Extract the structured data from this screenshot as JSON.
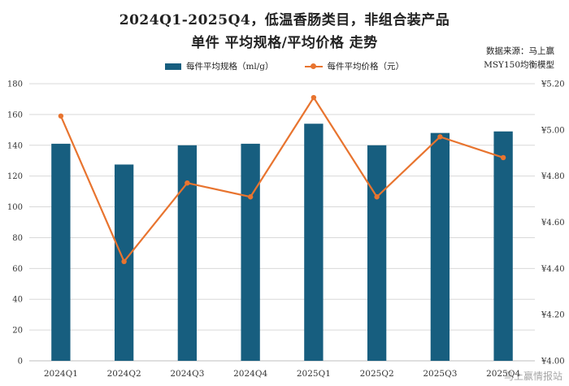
{
  "header": {
    "title_line1": "2024Q1-2025Q4，低温香肠类目，非组合装产品",
    "title_line2": "单件 平均规格/平均价格 走势"
  },
  "source": {
    "line1": "数据来源：马上赢",
    "line2": "MSY150均衡模型"
  },
  "watermark": "马上赢情报站",
  "colors": {
    "bar": "#175e7f",
    "line": "#e8742f",
    "grid": "#d9d9d9"
  },
  "chart_data": {
    "type": "bar",
    "categories": [
      "2024Q1",
      "2024Q2",
      "2024Q3",
      "2024Q4",
      "2025Q1",
      "2025Q2",
      "2025Q3",
      "2025Q4"
    ],
    "series": [
      {
        "name": "每件平均规格（ml/g）",
        "type": "bar",
        "axis": "left",
        "values": [
          141,
          127.5,
          140,
          141,
          154,
          140,
          148,
          149
        ]
      },
      {
        "name": "每件平均价格（元）",
        "type": "line",
        "axis": "right",
        "values": [
          5.06,
          4.43,
          4.77,
          4.71,
          5.14,
          4.71,
          4.97,
          4.88
        ]
      }
    ],
    "y_left": {
      "min": 0,
      "max": 180,
      "ticks": [
        0,
        20,
        40,
        60,
        80,
        100,
        120,
        140,
        160,
        180
      ]
    },
    "y_right": {
      "min": 4.0,
      "max": 5.2,
      "ticks": [
        "¥4.00",
        "¥4.20",
        "¥4.40",
        "¥4.60",
        "¥4.80",
        "¥5.00",
        "¥5.20"
      ]
    },
    "grid": true,
    "legend": "top-center"
  }
}
